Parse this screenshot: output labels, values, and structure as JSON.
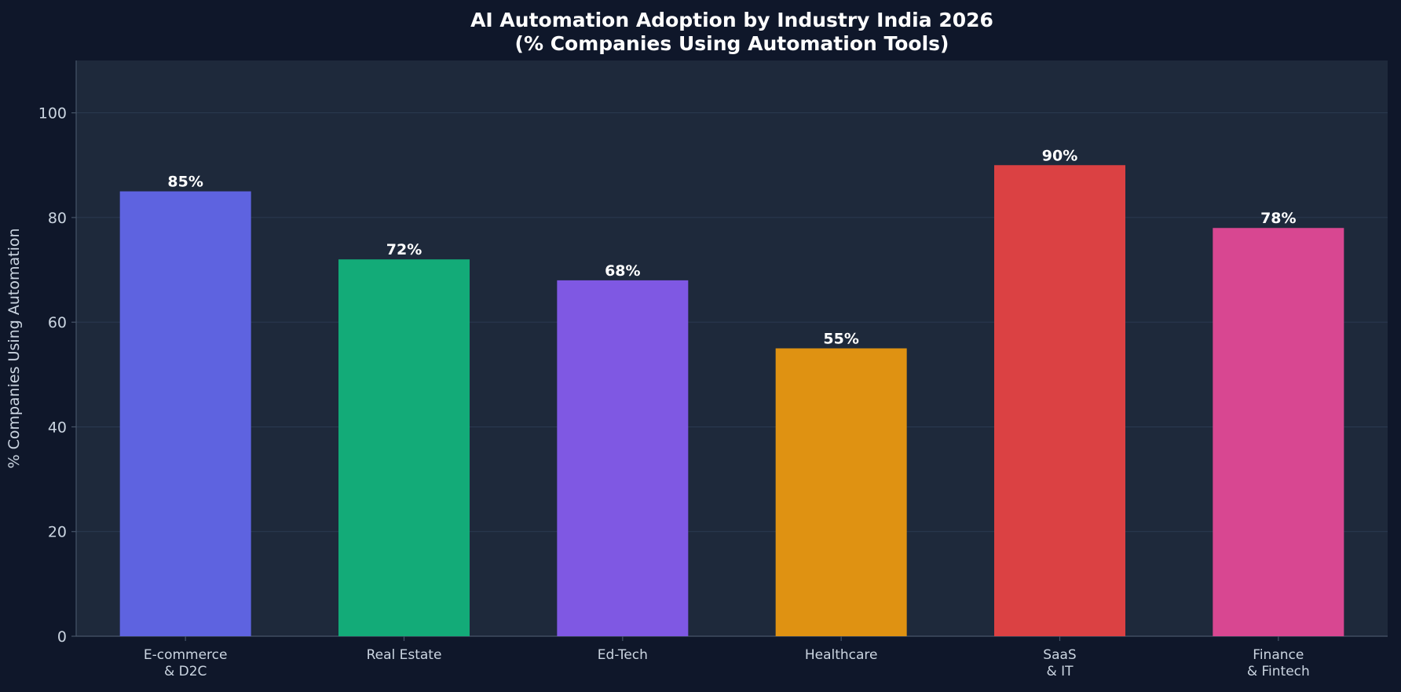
{
  "chart_data": {
    "type": "bar",
    "title_lines": [
      "AI Automation Adoption by Industry India 2026",
      "(% Companies Using Automation Tools)"
    ],
    "xlabel": "",
    "ylabel": "% Companies Using Automation",
    "ylim": [
      0,
      110
    ],
    "yticks": [
      0,
      20,
      40,
      60,
      80,
      100
    ],
    "grid": true,
    "categories": [
      [
        "E-commerce",
        "& D2C"
      ],
      [
        "Real Estate"
      ],
      [
        "Ed-Tech"
      ],
      [
        "Healthcare"
      ],
      [
        "SaaS",
        "& IT"
      ],
      [
        "Finance",
        "& Fintech"
      ]
    ],
    "values": [
      85,
      72,
      68,
      55,
      90,
      78
    ],
    "value_labels": [
      "85%",
      "72%",
      "68%",
      "55%",
      "90%",
      "78%"
    ],
    "colors": [
      "#5e63e0",
      "#13ab78",
      "#7f58e3",
      "#df9212",
      "#db4143",
      "#d84791"
    ]
  },
  "theme": {
    "page_bg": "#0f172a",
    "plot_bg": "#1e293b",
    "grid_color": "#2b3a52",
    "axis_color": "#475569"
  }
}
